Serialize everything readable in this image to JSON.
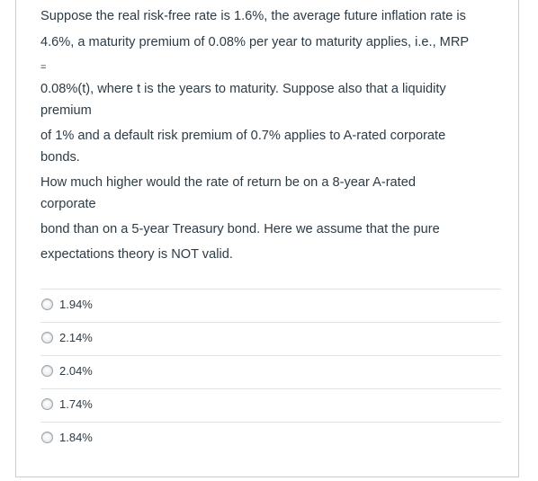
{
  "question": {
    "lines": [
      "Suppose the real risk-free rate is 1.6%, the average future inflation rate is",
      "4.6%, a maturity premium of 0.08% per year to maturity applies, i.e., MRP",
      "=",
      "0.08%(t), where t is the years to maturity.  Suppose also that a liquidity",
      "premium",
      "of 1% and a default risk premium of 0.7% applies to A-rated corporate",
      "bonds.",
      "How much higher would the rate of return be on a 8-year A-rated",
      "corporate",
      "bond than on a 5-year Treasury bond.  Here we assume that the pure",
      "expectations theory is NOT valid."
    ]
  },
  "answers": [
    {
      "label": "1.94%"
    },
    {
      "label": "2.14%"
    },
    {
      "label": "2.04%"
    },
    {
      "label": "1.74%"
    },
    {
      "label": "1.84%"
    }
  ],
  "colors": {
    "text": "#2d3b45",
    "border": "#c7cdd1",
    "divider": "#dfe3e6"
  }
}
